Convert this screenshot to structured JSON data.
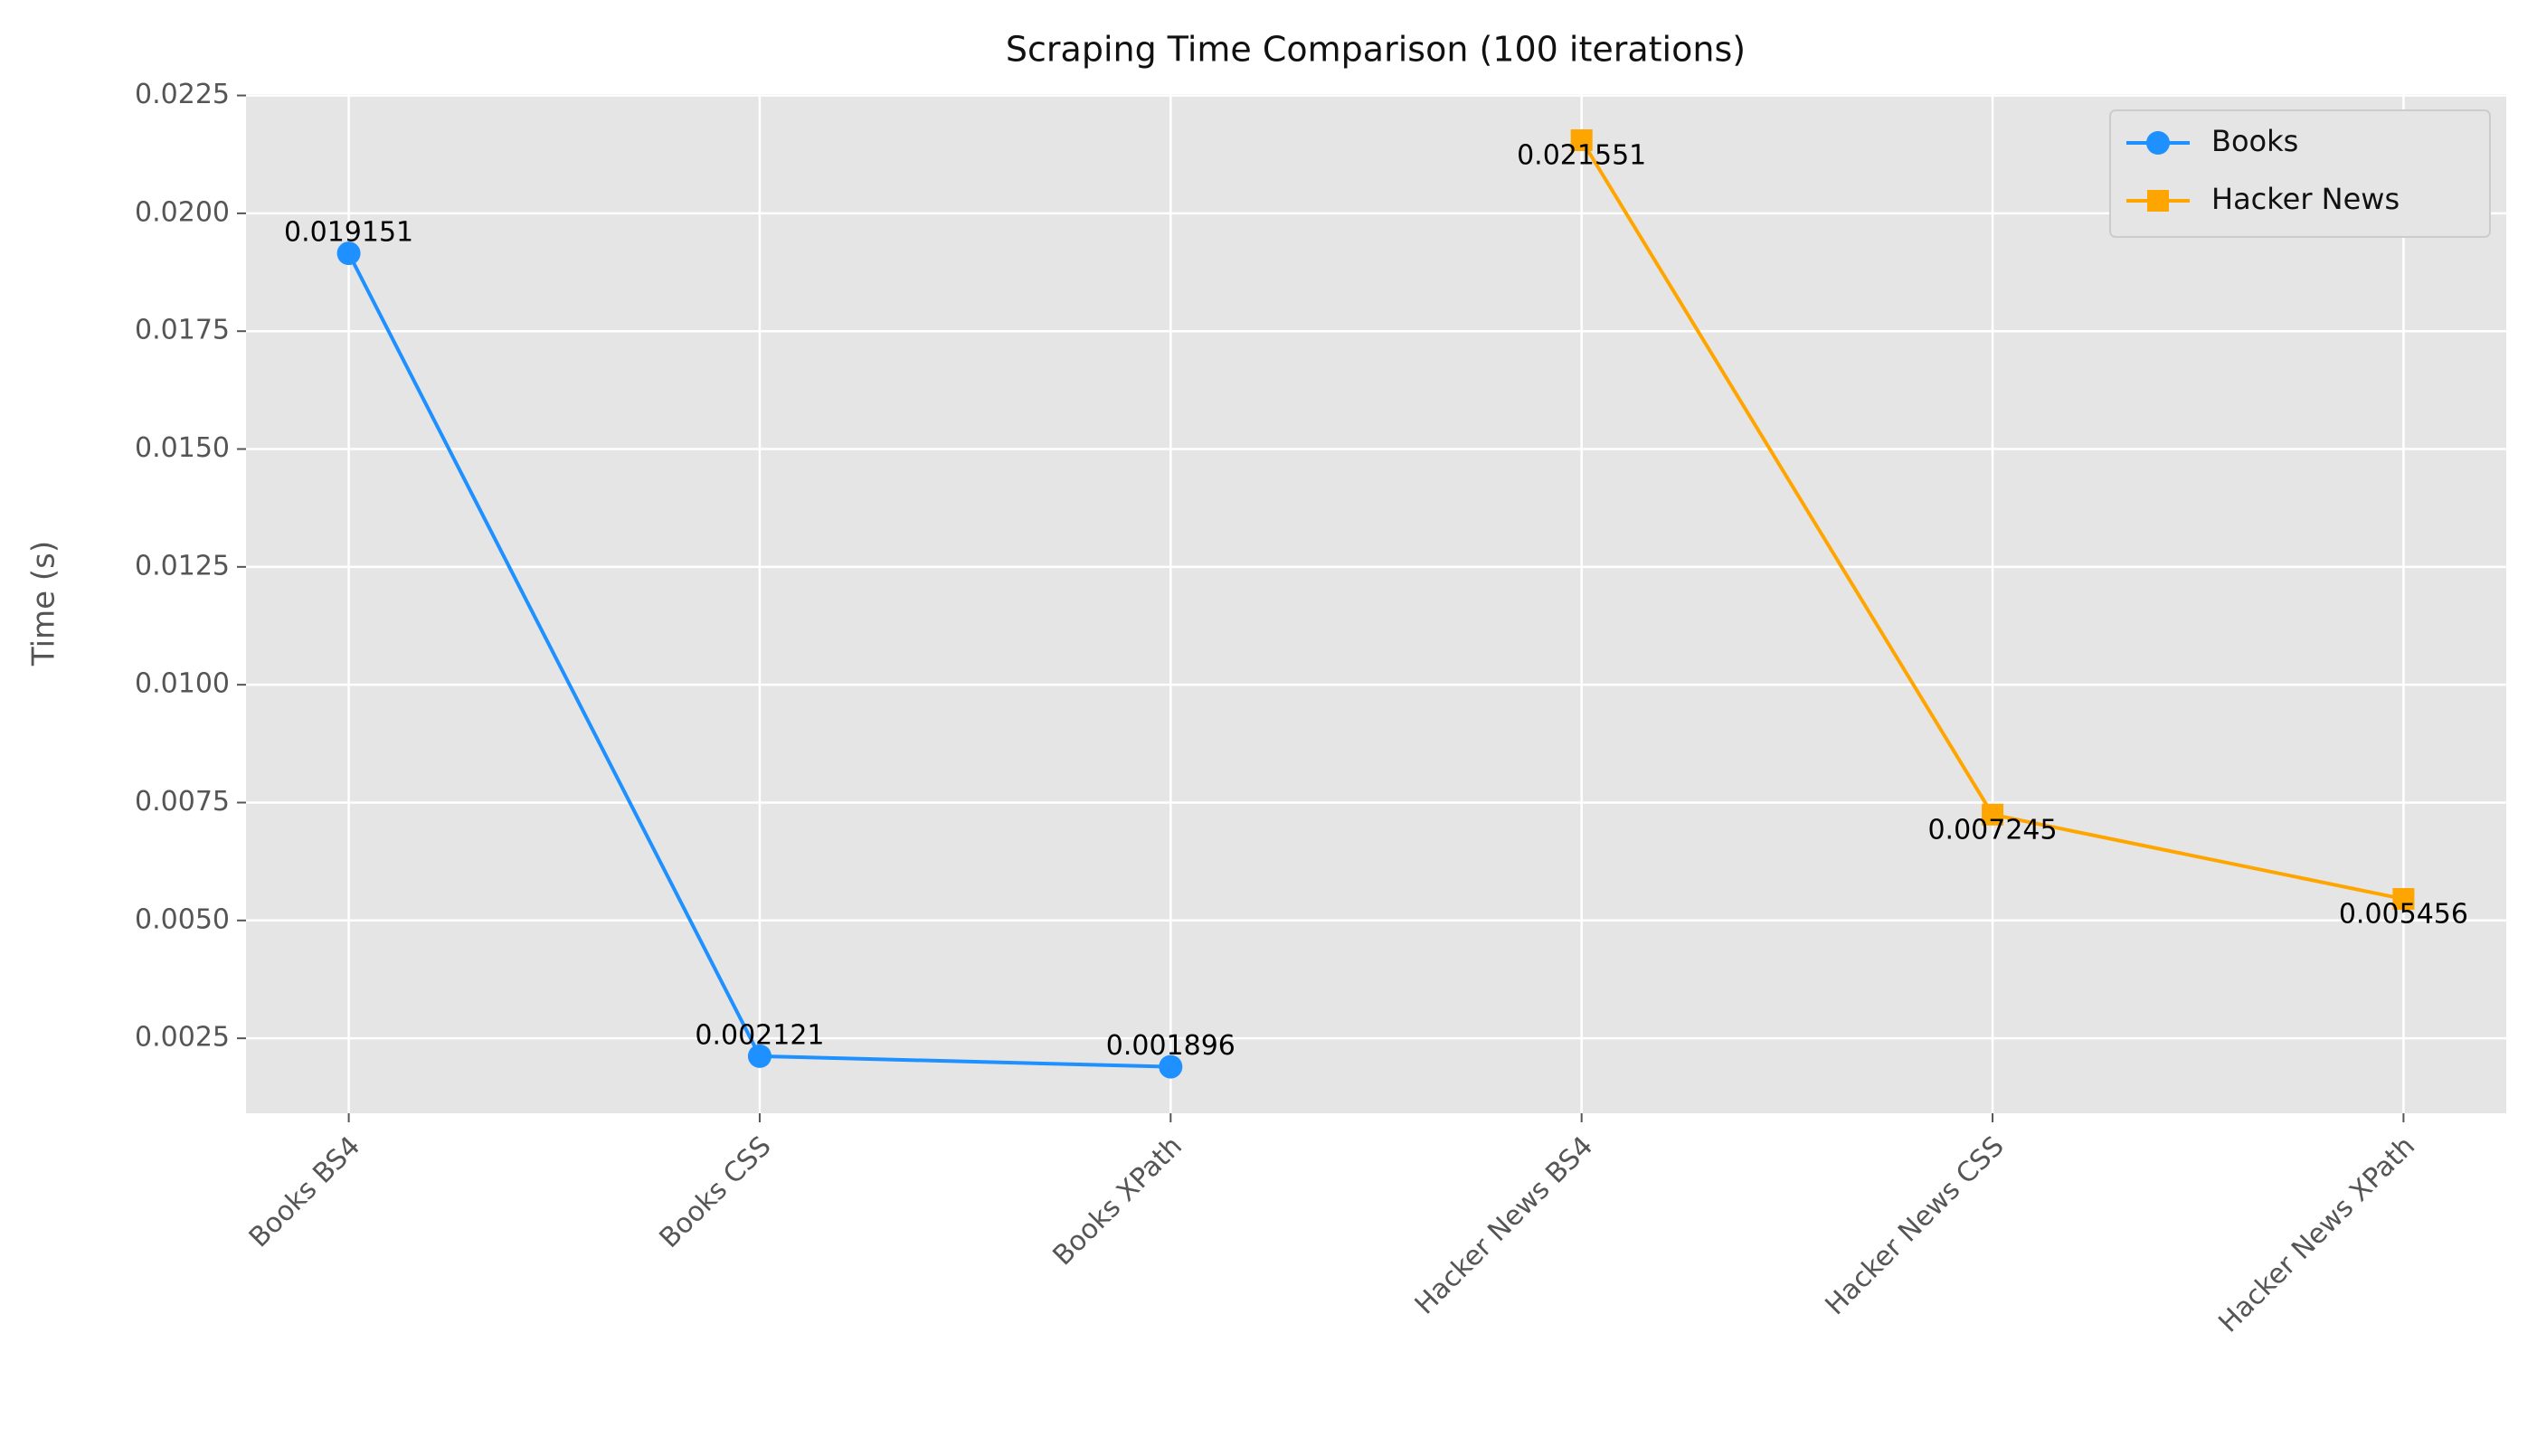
{
  "chart_data": {
    "type": "line",
    "title": "Scraping Time Comparison (100 iterations)",
    "y_label": "Time (s)",
    "categories": [
      "Books BS4",
      "Books CSS",
      "Books XPath",
      "Hacker News BS4",
      "Hacker News CSS",
      "Hacker News XPath"
    ],
    "series": [
      {
        "name": "Books",
        "color": "#1e90ff",
        "marker": "circle",
        "values": [
          0.019151,
          0.002121,
          0.001896,
          null,
          null,
          null
        ]
      },
      {
        "name": "Hacker News",
        "color": "#ffa500",
        "marker": "square",
        "values": [
          null,
          null,
          null,
          0.021551,
          0.007245,
          0.005456
        ]
      }
    ],
    "ylim": [
      0.00091,
      0.02253
    ],
    "yticks": [
      0.0025,
      {
        "value": 0.005,
        "label": "0.0050"
      },
      0.0075,
      {
        "value": 0.01,
        "label": "0.0100"
      },
      0.0125,
      {
        "value": 0.015,
        "label": "0.0150"
      },
      0.0175,
      {
        "value": 0.02,
        "label": "0.0200"
      },
      0.0225
    ],
    "grid": true,
    "legend": "upper right"
  }
}
